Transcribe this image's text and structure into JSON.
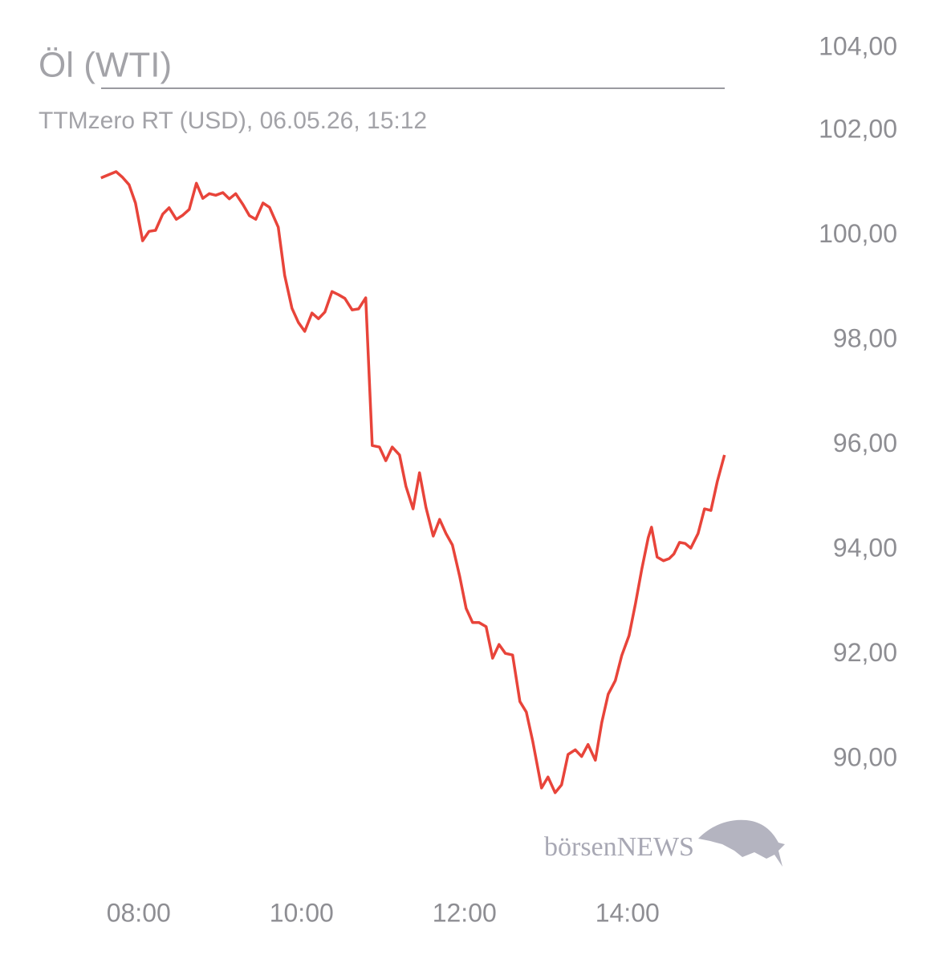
{
  "chart_data": {
    "type": "line",
    "title": "Öl (WTI)",
    "subtitle": "TTMzero RT (USD), 06.05.26, 15:12",
    "watermark": "börsenNEWS",
    "x": [
      7.537,
      7.724,
      7.803,
      7.882,
      7.961,
      8.049,
      8.128,
      8.207,
      8.296,
      8.374,
      8.463,
      8.542,
      8.621,
      8.709,
      8.788,
      8.867,
      8.946,
      9.034,
      9.113,
      9.192,
      9.281,
      9.36,
      9.438,
      9.527,
      9.606,
      9.714,
      9.793,
      9.882,
      9.961,
      10.039,
      10.128,
      10.207,
      10.286,
      10.374,
      10.453,
      10.532,
      10.621,
      10.7,
      10.788,
      10.867,
      10.956,
      11.034,
      11.113,
      11.202,
      11.281,
      11.369,
      11.448,
      11.527,
      11.616,
      11.695,
      11.773,
      11.852,
      11.941,
      12.02,
      12.099,
      12.177,
      12.266,
      12.345,
      12.424,
      12.502,
      12.591,
      12.68,
      12.759,
      12.837,
      12.946,
      13.025,
      13.113,
      13.192,
      13.271,
      13.36,
      13.438,
      13.517,
      13.606,
      13.685,
      13.764,
      13.852,
      13.931,
      14.02,
      14.099,
      14.177,
      14.256,
      14.296,
      14.365,
      14.443,
      14.512,
      14.571,
      14.64,
      14.709,
      14.778,
      14.867,
      14.946,
      15.025,
      15.103,
      15.192
    ],
    "series": [
      {
        "name": "Öl (WTI)",
        "color": "#e8443a",
        "values": [
          101.1,
          101.22,
          101.11,
          100.97,
          100.62,
          99.9,
          100.08,
          100.1,
          100.41,
          100.53,
          100.31,
          100.39,
          100.5,
          101.0,
          100.71,
          100.8,
          100.77,
          100.82,
          100.7,
          100.8,
          100.59,
          100.38,
          100.31,
          100.62,
          100.54,
          100.16,
          99.24,
          98.61,
          98.34,
          98.17,
          98.52,
          98.41,
          98.54,
          98.93,
          98.87,
          98.8,
          98.58,
          98.6,
          98.81,
          95.99,
          95.96,
          95.7,
          95.96,
          95.81,
          95.21,
          94.78,
          95.47,
          94.81,
          94.26,
          94.58,
          94.31,
          94.09,
          93.49,
          92.88,
          92.61,
          92.61,
          92.53,
          91.93,
          92.19,
          92.02,
          91.99,
          91.1,
          90.9,
          90.35,
          89.45,
          89.66,
          89.36,
          89.51,
          90.09,
          90.18,
          90.05,
          90.28,
          89.98,
          90.7,
          91.24,
          91.5,
          91.98,
          92.36,
          92.97,
          93.63,
          94.23,
          94.43,
          93.86,
          93.79,
          93.83,
          93.92,
          94.14,
          94.12,
          94.03,
          94.31,
          94.78,
          94.75,
          95.3,
          95.81
        ]
      }
    ],
    "xlim": [
      7.5,
      15.5
    ],
    "ylim": [
      88,
      104
    ],
    "xticks": [
      {
        "value": 8,
        "label": "08:00"
      },
      {
        "value": 10,
        "label": "10:00"
      },
      {
        "value": 12,
        "label": "12:00"
      },
      {
        "value": 14,
        "label": "14:00"
      }
    ],
    "yticks": [
      {
        "value": 90,
        "label": "90,00"
      },
      {
        "value": 92,
        "label": "92,00"
      },
      {
        "value": 94,
        "label": "94,00"
      },
      {
        "value": 96,
        "label": "96,00"
      },
      {
        "value": 98,
        "label": "98,00"
      },
      {
        "value": 100,
        "label": "100,00"
      },
      {
        "value": 102,
        "label": "102,00"
      },
      {
        "value": 104,
        "label": "104,00"
      }
    ],
    "grid": false
  }
}
